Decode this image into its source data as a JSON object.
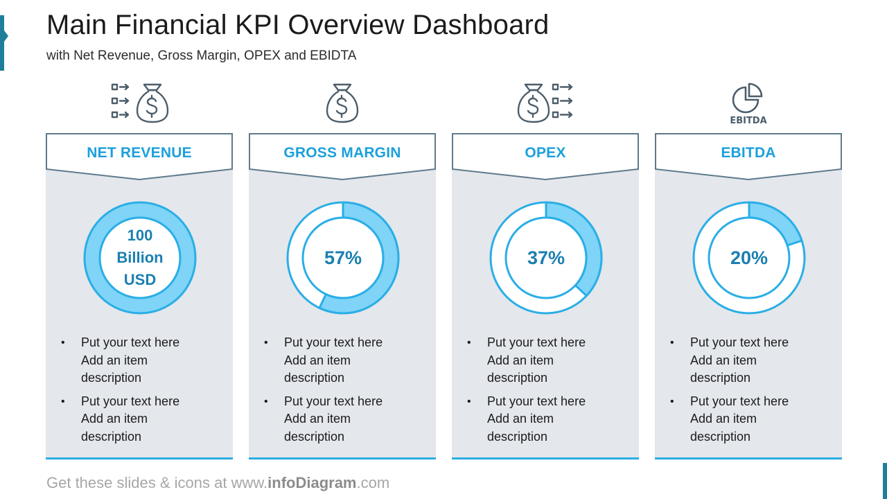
{
  "header": {
    "title": "Main Financial KPI Overview Dashboard",
    "subtitle": "with Net Revenue, Gross Margin, OPEX and EBIDTA"
  },
  "colors": {
    "accent_blue": "#1ca0dc",
    "ring_light": "#7fd4f7",
    "card_bg": "#e4e7ec",
    "banner_stroke": "#5e7a8c",
    "icon_gray": "#4c5d6a"
  },
  "cards": [
    {
      "title": "NET REVENUE",
      "icon": "money-bag-in-arrows-icon",
      "value_lines": [
        "100",
        "Billion",
        "USD"
      ],
      "fraction": 1.0,
      "bullets": [
        [
          "Put your text here",
          "Add an item",
          "description"
        ],
        [
          "Put your text here",
          "Add an item",
          "description"
        ]
      ]
    },
    {
      "title": "GROSS MARGIN",
      "icon": "money-bag-icon",
      "value": "57%",
      "fraction": 0.57,
      "bullets": [
        [
          "Put your text here",
          "Add an item",
          "description"
        ],
        [
          "Put your text here",
          "Add an item",
          "description"
        ]
      ]
    },
    {
      "title": "OPEX",
      "icon": "money-bag-out-arrows-icon",
      "value": "37%",
      "fraction": 0.37,
      "bullets": [
        [
          "Put your text here",
          "Add an item",
          "description"
        ],
        [
          "Put your text here",
          "Add an item",
          "description"
        ]
      ]
    },
    {
      "title": "EBITDA",
      "icon": "pie-chart-icon",
      "icon_label": "EBITDA",
      "value": "20%",
      "fraction": 0.2,
      "bullets": [
        [
          "Put your text here",
          "Add an item",
          "description"
        ],
        [
          "Put your text here",
          "Add an item",
          "description"
        ]
      ]
    }
  ],
  "footer": {
    "prefix": "Get these slides & icons at www.",
    "brand": "infoDiagram",
    "suffix": ".com"
  }
}
